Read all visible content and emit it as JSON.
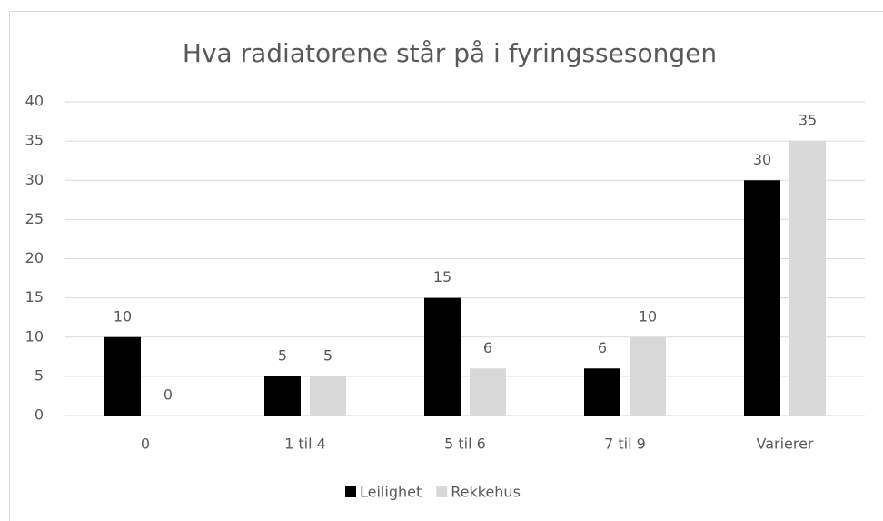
{
  "chart_data": {
    "type": "bar",
    "title": "Hva radiatorene står på i fyringssesongen",
    "categories": [
      "0",
      "1 til 4",
      "5 til 6",
      "7 til 9",
      "Varierer"
    ],
    "series": [
      {
        "name": "Leilighet",
        "color": "#000000",
        "values": [
          10,
          5,
          15,
          6,
          30
        ]
      },
      {
        "name": "Rekkehus",
        "color": "#d9d9d9",
        "values": [
          0,
          5,
          6,
          10,
          35
        ]
      }
    ],
    "ylim": [
      0,
      40
    ],
    "yticks": [
      0,
      5,
      10,
      15,
      20,
      25,
      30,
      35,
      40
    ],
    "grid": true,
    "legend": "bottom"
  }
}
